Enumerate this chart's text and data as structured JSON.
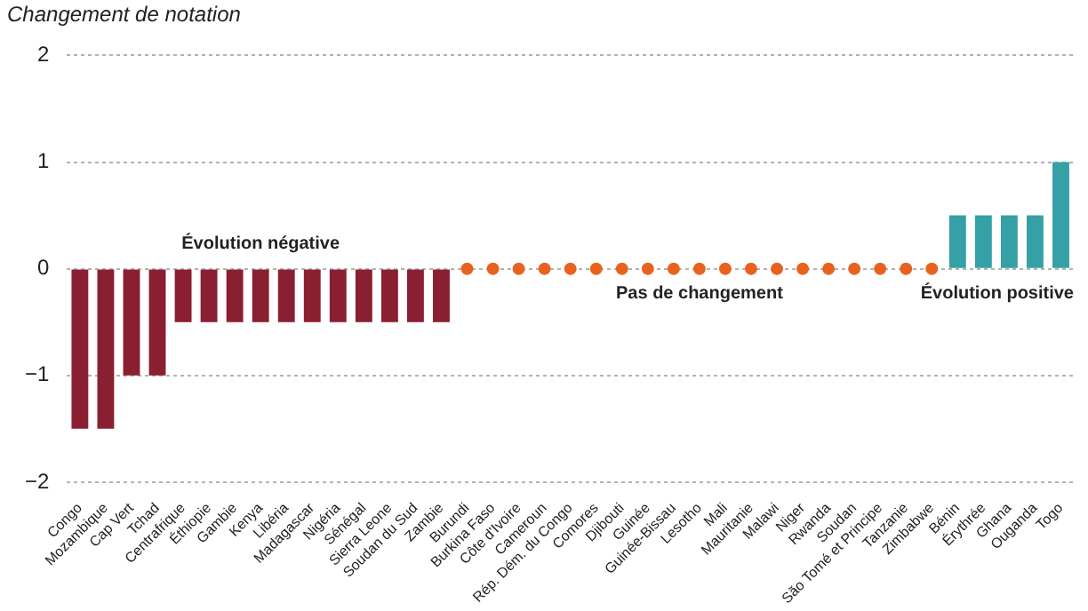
{
  "chart_data": {
    "type": "bar",
    "ylabel": "Changement de notation",
    "categories": [
      "Congo",
      "Mozambique",
      "Cap Vert",
      "Tchad",
      "Centrafrique",
      "Éthiopie",
      "Gambie",
      "Kenya",
      "Libéria",
      "Madagascar",
      "Nigéria",
      "Sénégal",
      "Sierra Leone",
      "Soudan du Sud",
      "Zambie",
      "Burundi",
      "Burkina Faso",
      "Côte d'Ivoire",
      "Cameroun",
      "Rép. Dém. du Congo",
      "Comores",
      "Djibouti",
      "Guinée",
      "Guinée-Bissau",
      "Lesotho",
      "Mali",
      "Mauritanie",
      "Malawi",
      "Niger",
      "Rwanda",
      "Soudan",
      "São Tomé et Principe",
      "Tanzanie",
      "Zimbabwe",
      "Bénin",
      "Érythrée",
      "Ghana",
      "Ouganda",
      "Togo"
    ],
    "series": [
      {
        "color": "#8a1f31",
        "values": [
          -1.5,
          -1.5,
          -1,
          -1,
          -0.5,
          -0.5,
          -0.5,
          -0.5,
          -0.5,
          -0.5,
          -0.5,
          -0.5,
          -0.5,
          -0.5,
          -0.5,
          null,
          null,
          null,
          null,
          null,
          null,
          null,
          null,
          null,
          null,
          null,
          null,
          null,
          null,
          null,
          null,
          null,
          null,
          null,
          null,
          null,
          null,
          null,
          null
        ]
      },
      {
        "type": "scatter",
        "color": "#e8621e",
        "marker": "circle",
        "x": [
          "Burundi",
          "Burkina Faso",
          "Côte d'Ivoire",
          "Cameroun",
          "Rép. Dém. du Congo",
          "Comores",
          "Djibouti",
          "Guinée",
          "Guinée-Bissau",
          "Lesotho",
          "Mali",
          "Mauritanie",
          "Malawi",
          "Niger",
          "Rwanda",
          "Soudan",
          "São Tomé et Principe",
          "Tanzanie",
          "Zimbabwe"
        ],
        "values": [
          0,
          0,
          0,
          0,
          0,
          0,
          0,
          0,
          0,
          0,
          0,
          0,
          0,
          0,
          0,
          0,
          0,
          0,
          0
        ]
      },
      {
        "color": "#35a0a6",
        "values": [
          null,
          null,
          null,
          null,
          null,
          null,
          null,
          null,
          null,
          null,
          null,
          null,
          null,
          null,
          null,
          null,
          null,
          null,
          null,
          null,
          null,
          null,
          null,
          null,
          null,
          null,
          null,
          null,
          null,
          null,
          null,
          null,
          null,
          null,
          0.5,
          0.5,
          0.5,
          0.5,
          1
        ]
      }
    ],
    "ylim": [
      -2,
      2
    ],
    "yticks": [
      -2,
      -1,
      0,
      1,
      2
    ],
    "grid": "y",
    "annotations": [
      "Évolution négative",
      "Pas de changement",
      "Évolution positive"
    ]
  }
}
